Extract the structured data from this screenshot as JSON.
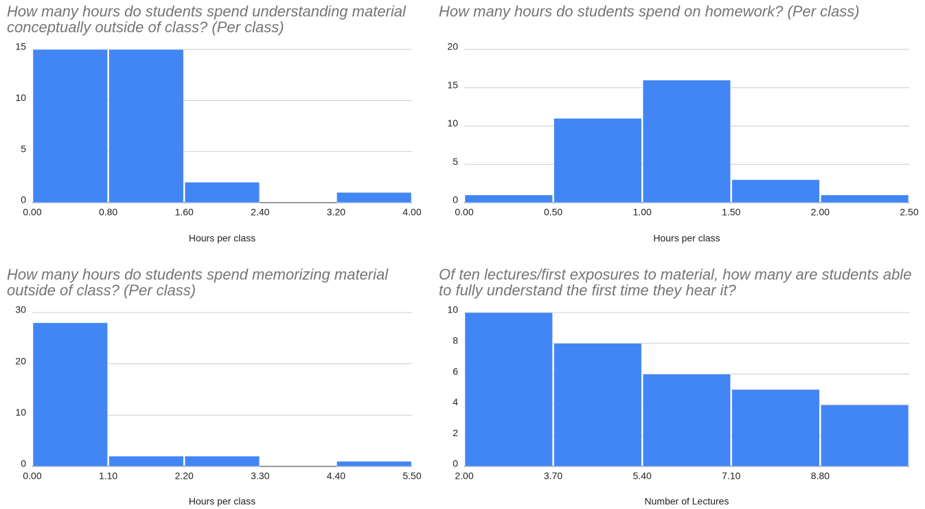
{
  "chart_data": [
    {
      "type": "histogram",
      "title": "How many hours do students spend understanding material conceptually outside of class? (Per class)",
      "x_label": "Hours per class",
      "bins": [
        0,
        0.8,
        1.6,
        2.4,
        3.2,
        4.0
      ],
      "values": [
        15,
        15,
        2,
        0,
        1
      ],
      "color": "#4285f4",
      "xlim": [
        0,
        4.0
      ],
      "xticks": [
        {
          "value": 0,
          "label": "0.00"
        },
        {
          "value": 0.8,
          "label": "0.80"
        },
        {
          "value": 1.6,
          "label": "1.60"
        },
        {
          "value": 2.4,
          "label": "2.40"
        },
        {
          "value": 3.2,
          "label": "3.20"
        },
        {
          "value": 4.0,
          "label": "4.00"
        }
      ],
      "ylim": [
        0,
        15
      ],
      "yticks": [
        0,
        5,
        10,
        15
      ],
      "grid": true
    },
    {
      "type": "histogram",
      "title": "How many hours do students spend on homework? (Per class)",
      "x_label": "Hours per class",
      "bins": [
        0,
        0.5,
        1.0,
        1.5,
        2.0,
        2.5
      ],
      "values": [
        1,
        11,
        16,
        3,
        1
      ],
      "color": "#4285f4",
      "xlim": [
        0,
        2.5
      ],
      "xticks": [
        {
          "value": 0,
          "label": "0.00"
        },
        {
          "value": 0.5,
          "label": "0.50"
        },
        {
          "value": 1.0,
          "label": "1.00"
        },
        {
          "value": 1.5,
          "label": "1.50"
        },
        {
          "value": 2.0,
          "label": "2.00"
        },
        {
          "value": 2.5,
          "label": "2.50"
        }
      ],
      "ylim": [
        0,
        20
      ],
      "yticks": [
        0,
        5,
        10,
        15,
        20
      ],
      "grid": true
    },
    {
      "type": "histogram",
      "title": "How many hours do students spend memorizing material outside of class? (Per class)",
      "x_label": "Hours per class",
      "bins": [
        0,
        1.1,
        2.2,
        3.3,
        4.4,
        5.5
      ],
      "values": [
        28,
        2,
        2,
        0,
        1
      ],
      "color": "#4285f4",
      "xlim": [
        0,
        5.5
      ],
      "xticks": [
        {
          "value": 0,
          "label": "0.00"
        },
        {
          "value": 1.1,
          "label": "1.10"
        },
        {
          "value": 2.2,
          "label": "2.20"
        },
        {
          "value": 3.3,
          "label": "3.30"
        },
        {
          "value": 4.4,
          "label": "4.40"
        },
        {
          "value": 5.5,
          "label": "5.50"
        }
      ],
      "ylim": [
        0,
        30
      ],
      "yticks": [
        0,
        10,
        20,
        30
      ],
      "grid": true
    },
    {
      "type": "histogram",
      "title": "Of ten lectures/first exposures to material, how many are students able to fully understand the first time they hear it?",
      "x_label": "Number of Lectures",
      "bins": [
        2.0,
        3.7,
        5.4,
        7.1,
        8.8,
        10.5
      ],
      "values": [
        10,
        8,
        6,
        5,
        4
      ],
      "color": "#4285f4",
      "xlim": [
        2.0,
        10.5
      ],
      "xticks": [
        {
          "value": 2.0,
          "label": "2.00"
        },
        {
          "value": 3.7,
          "label": "3.70"
        },
        {
          "value": 5.4,
          "label": "5.40"
        },
        {
          "value": 7.1,
          "label": "7.10"
        },
        {
          "value": 8.8,
          "label": "8.80"
        }
      ],
      "ylim": [
        0,
        10
      ],
      "yticks": [
        0,
        2,
        4,
        6,
        8,
        10
      ],
      "grid": true
    }
  ]
}
